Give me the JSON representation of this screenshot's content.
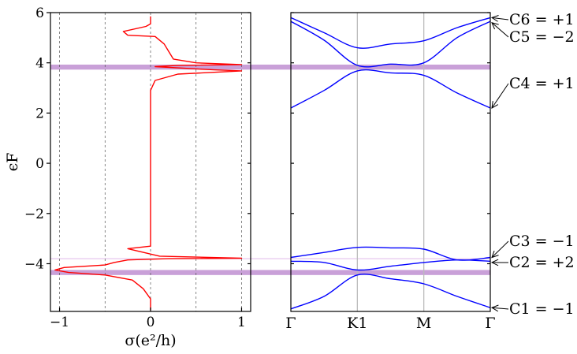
{
  "chart_data": [
    {
      "type": "line",
      "xlabel": "σ(e²/h)",
      "ylabel": "ϵF",
      "xlim": [
        -1.1,
        1.1
      ],
      "ylim": [
        -5.9,
        6.0
      ],
      "x_ticks": [
        -1,
        0,
        1
      ],
      "x_tick_labels": [
        "−1",
        "0",
        "1"
      ],
      "y_ticks": [
        -4,
        -2,
        0,
        2,
        4,
        6
      ],
      "y_tick_labels": [
        "−4",
        "−2",
        "0",
        "2",
        "4",
        "6"
      ],
      "grid": "vertical dashed at -1, -0.5, 0, 0.5, 1",
      "series": [
        {
          "color": "#ff0000",
          "points": [
            [
              0.0,
              5.85
            ],
            [
              0.0,
              5.55
            ],
            [
              -0.05,
              5.45
            ],
            [
              -0.3,
              5.25
            ],
            [
              -0.25,
              5.1
            ],
            [
              0.05,
              5.05
            ],
            [
              0.15,
              4.75
            ],
            [
              0.2,
              4.45
            ],
            [
              0.25,
              4.15
            ],
            [
              0.5,
              4.0
            ],
            [
              1.0,
              3.93
            ],
            [
              0.3,
              3.9
            ],
            [
              0.05,
              3.85
            ],
            [
              0.7,
              3.72
            ],
            [
              1.0,
              3.68
            ],
            [
              0.3,
              3.55
            ],
            [
              0.05,
              3.3
            ],
            [
              0.0,
              2.9
            ],
            [
              0.0,
              2.2
            ],
            [
              0.0,
              -3.3
            ],
            [
              -0.25,
              -3.4
            ],
            [
              0.1,
              -3.7
            ],
            [
              1.0,
              -3.78
            ],
            [
              0.2,
              -3.8
            ],
            [
              -0.25,
              -3.85
            ],
            [
              -0.4,
              -3.95
            ],
            [
              -0.5,
              -4.05
            ],
            [
              -0.95,
              -4.15
            ],
            [
              -1.05,
              -4.25
            ],
            [
              -0.9,
              -4.35
            ],
            [
              -0.5,
              -4.45
            ],
            [
              -0.2,
              -4.65
            ],
            [
              -0.08,
              -5.0
            ],
            [
              0.0,
              -5.4
            ],
            [
              0.0,
              -5.85
            ]
          ]
        }
      ],
      "gap_bands": [
        {
          "from": 3.73,
          "to": 3.93,
          "color": "#c9a0d8"
        },
        {
          "from": -4.45,
          "to": -4.25,
          "color": "#c9a0d8"
        },
        {
          "from": -3.82,
          "to": -3.78,
          "color": "#e7c6ee"
        }
      ]
    },
    {
      "type": "line",
      "xlabel": "",
      "k_labels": [
        "Γ",
        "K1",
        "M",
        "Γ"
      ],
      "k_positions": [
        0,
        1,
        2,
        3
      ],
      "ylim": [
        -5.9,
        6.0
      ],
      "vertical_lines_at": [
        1,
        2
      ],
      "series": [
        {
          "name": "band1",
          "color": "#0000ff",
          "x": [
            0,
            0.5,
            1.0,
            1.5,
            2.0,
            2.5,
            3.0
          ],
          "values": [
            -5.8,
            -5.3,
            -4.45,
            -4.6,
            -4.8,
            -5.3,
            -5.75
          ]
        },
        {
          "name": "band2",
          "color": "#0000ff",
          "x": [
            0,
            0.5,
            1.0,
            1.5,
            2.0,
            2.5,
            3.0
          ],
          "values": [
            -3.9,
            -3.95,
            -4.25,
            -4.1,
            -3.95,
            -3.85,
            -3.9
          ]
        },
        {
          "name": "band3",
          "color": "#0000ff",
          "x": [
            0,
            0.5,
            1.0,
            1.5,
            2.0,
            2.5,
            3.0
          ],
          "values": [
            -3.75,
            -3.55,
            -3.35,
            -3.37,
            -3.42,
            -3.85,
            -3.75
          ]
        },
        {
          "name": "band4",
          "color": "#0000ff",
          "x": [
            0,
            0.5,
            1.0,
            1.5,
            2.0,
            2.5,
            3.0
          ],
          "values": [
            2.2,
            2.9,
            3.68,
            3.6,
            3.5,
            2.8,
            2.2
          ]
        },
        {
          "name": "band5",
          "color": "#0000ff",
          "x": [
            0,
            0.5,
            1.0,
            1.5,
            2.0,
            2.5,
            3.0
          ],
          "values": [
            5.65,
            4.9,
            3.9,
            3.95,
            4.0,
            5.0,
            5.65
          ]
        },
        {
          "name": "band6",
          "color": "#0000ff",
          "x": [
            0,
            0.5,
            1.0,
            1.5,
            2.0,
            2.5,
            3.0
          ],
          "values": [
            5.8,
            5.2,
            4.6,
            4.75,
            4.88,
            5.4,
            5.8
          ]
        }
      ],
      "annotations": [
        {
          "text": "C6 = +1",
          "points_to": 5.8
        },
        {
          "text": "C5 = −2",
          "points_to": 5.6
        },
        {
          "text": "C4 = +1",
          "points_to": 2.2
        },
        {
          "text": "C3 = −1",
          "points_to": -3.75
        },
        {
          "text": "C2 = +2",
          "points_to": -3.95
        },
        {
          "text": "C1 = −1",
          "points_to": -5.75
        }
      ]
    }
  ]
}
